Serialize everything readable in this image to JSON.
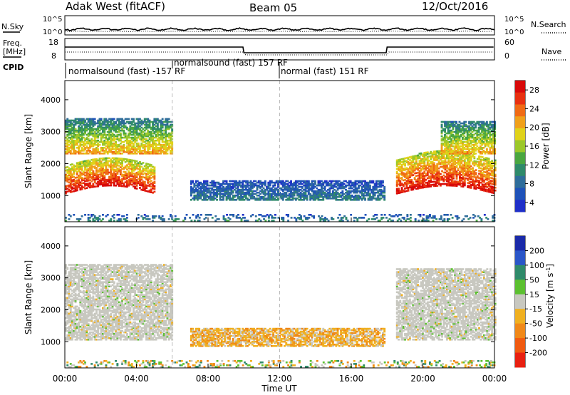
{
  "header": {
    "station": "Adak West (fitACF)",
    "beam": "Beam 05",
    "date": "12/Oct/2016"
  },
  "panels": {
    "sky": {
      "left_label": "N.Sky",
      "right_label": "N.Search",
      "left_ticks": [
        "10^5",
        "10^0"
      ],
      "right_ticks": [
        "10^5",
        "10^0"
      ]
    },
    "freq": {
      "left_label_line1": "Freq.",
      "left_label_line2": "[MHz]",
      "right_label": "Nave",
      "left_ticks": [
        "18",
        "8"
      ],
      "right_ticks": [
        "60",
        "0"
      ],
      "cpid_label": "CPID"
    },
    "cpid_segments": [
      {
        "label": "normalsound (fast) -157 RF",
        "start_hr": 0,
        "end_hr": 6
      },
      {
        "label": "normalsound (fast) 157 RF",
        "start_hr": 6,
        "end_hr": 12
      },
      {
        "label": "normal (fast) 151 RF",
        "start_hr": 12,
        "end_hr": 24
      }
    ]
  },
  "chart_data": [
    {
      "type": "heatmap",
      "title": "",
      "xlabel": "Time UT",
      "ylabel": "Slant Range [km]",
      "xlim": [
        0,
        24
      ],
      "ylim": [
        180,
        4600
      ],
      "x_ticks": [
        "00:00",
        "04:00",
        "08:00",
        "12:00",
        "16:00",
        "20:00",
        "00:00"
      ],
      "y_ticks": [
        1000,
        2000,
        3000,
        4000
      ],
      "colorbar": {
        "label": "Power [dB]",
        "ticks": [
          4,
          8,
          12,
          16,
          20,
          24,
          28
        ],
        "colors": [
          "#1f2fc8",
          "#1f52b8",
          "#2f6d9a",
          "#2f8a6a",
          "#4aa640",
          "#9cc82a",
          "#e0d21a",
          "#f0a01a",
          "#f06a14",
          "#e83010",
          "#d80a0a"
        ]
      },
      "features": [
        {
          "name": "near-range scatter band",
          "time_start": 0.0,
          "time_end": 24.0,
          "range_km": [
            200,
            420
          ],
          "power_db": [
            4,
            10
          ]
        },
        {
          "name": "morning main echo",
          "time_start": 0.0,
          "time_end": 5.0,
          "range_km": [
            1050,
            2200
          ],
          "power_db": [
            16,
            30
          ]
        },
        {
          "name": "morning upper echo",
          "time_start": 0.0,
          "time_end": 6.0,
          "range_km": [
            2300,
            3400
          ],
          "power_db": [
            8,
            22
          ]
        },
        {
          "name": "midday low echo",
          "time_start": 7.0,
          "time_end": 17.8,
          "range_km": [
            850,
            1450
          ],
          "power_db": [
            4,
            9
          ]
        },
        {
          "name": "evening main echo",
          "time_start": 18.5,
          "time_end": 24.0,
          "range_km": [
            1050,
            2400
          ],
          "power_db": [
            16,
            30
          ]
        },
        {
          "name": "evening upper echo",
          "time_start": 21.0,
          "time_end": 24.0,
          "range_km": [
            2300,
            3300
          ],
          "power_db": [
            8,
            22
          ]
        }
      ]
    },
    {
      "type": "heatmap",
      "title": "",
      "xlabel": "Time UT",
      "ylabel": "Slant Range [km]",
      "xlim": [
        0,
        24
      ],
      "ylim": [
        180,
        4600
      ],
      "x_ticks": [
        "00:00",
        "04:00",
        "08:00",
        "12:00",
        "16:00",
        "20:00",
        "00:00"
      ],
      "y_ticks": [
        1000,
        2000,
        3000,
        4000
      ],
      "colorbar": {
        "label": "Velocity [m s^-1]",
        "ticks": [
          200,
          100,
          50,
          15,
          -15,
          -50,
          -100,
          -200
        ],
        "colors": [
          "#1a2aa8",
          "#2a56c8",
          "#2f8a6a",
          "#5cc030",
          "#c8c8c0",
          "#f0b020",
          "#f08818",
          "#f05a10",
          "#e82010"
        ]
      },
      "features": [
        {
          "name": "near-range scatter band",
          "time_start": 0.0,
          "time_end": 24.0,
          "range_km": [
            200,
            420
          ],
          "velocity_ms": [
            -50,
            50
          ]
        },
        {
          "name": "morning ground scatter",
          "time_start": 0.0,
          "time_end": 6.0,
          "range_km": [
            1050,
            3400
          ],
          "velocity_ms": [
            -15,
            15
          ]
        },
        {
          "name": "midday echo",
          "time_start": 7.0,
          "time_end": 17.8,
          "range_km": [
            850,
            1400
          ],
          "velocity_ms": [
            -100,
            15
          ]
        },
        {
          "name": "evening ground scatter",
          "time_start": 18.5,
          "time_end": 24.0,
          "range_km": [
            1050,
            3300
          ],
          "velocity_ms": [
            -15,
            15
          ]
        }
      ]
    }
  ]
}
